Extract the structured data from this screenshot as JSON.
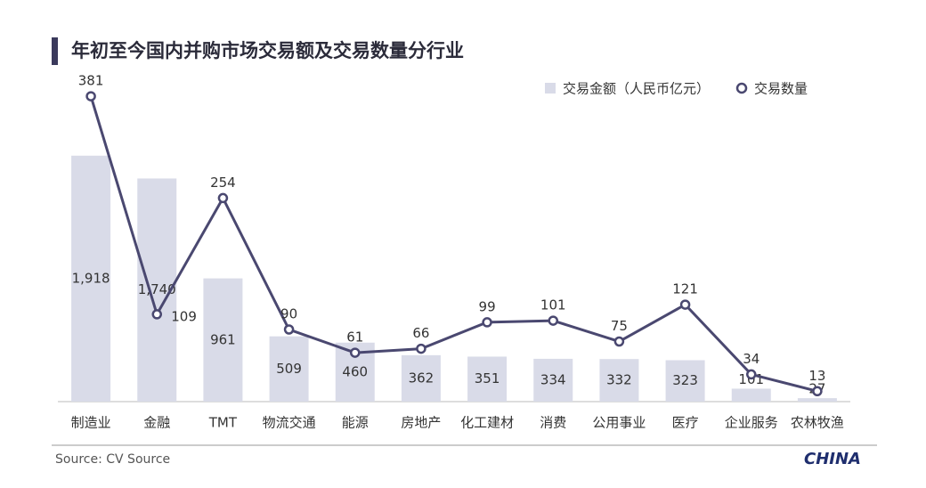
{
  "chart_data": {
    "type": "combo",
    "title": "年初至今国内并购市场交易额及交易数量分行业",
    "source": "Source: CV Source",
    "logo": "CHINA",
    "categories": [
      "制造业",
      "金融",
      "TMT",
      "物流交通",
      "能源",
      "房地产",
      "化工建材",
      "消费",
      "公用事业",
      "医疗",
      "企业服务",
      "农林牧渔"
    ],
    "series": [
      {
        "name": "交易金额（人民币亿元）",
        "type": "bar",
        "color": "#d9dbe8",
        "values": [
          1918,
          1740,
          961,
          509,
          460,
          362,
          351,
          334,
          332,
          323,
          101,
          27
        ],
        "value_labels": [
          "1,918",
          "1,740",
          "961",
          "509",
          "460",
          "362",
          "351",
          "334",
          "332",
          "323",
          "101",
          "27"
        ]
      },
      {
        "name": "交易数量",
        "type": "line",
        "axis": "y2",
        "color": "#4a4870",
        "values": [
          381,
          109,
          254,
          90,
          61,
          66,
          99,
          101,
          75,
          121,
          34,
          13
        ]
      }
    ],
    "ylim": [
      0,
      2500
    ],
    "y2lim": [
      0,
      400
    ],
    "legend": "top-right"
  }
}
